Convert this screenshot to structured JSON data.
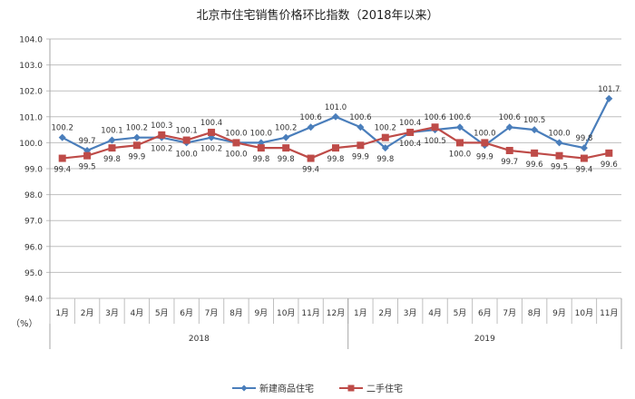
{
  "title": "北京市住宅销售价格环比指数（2018年以来）",
  "unit_label": "（%）",
  "colors": {
    "new_homes": "#4a7ebb",
    "second_hand": "#be4b48",
    "grid": "#bfbfbf",
    "axis": "#a6a6a6",
    "text": "#333333"
  },
  "legend": [
    {
      "name": "新建商品住宅",
      "color": "#4a7ebb",
      "marker": "diamond"
    },
    {
      "name": "二手住宅",
      "color": "#be4b48",
      "marker": "square"
    }
  ],
  "chart_data": {
    "type": "line",
    "title": "北京市住宅销售价格环比指数（2018年以来）",
    "xlabel": "",
    "ylabel": "（%）",
    "ylim": [
      94.0,
      104.0
    ],
    "ytick_step": 1.0,
    "yticks": [
      "94.0",
      "95.0",
      "96.0",
      "97.0",
      "98.0",
      "99.0",
      "100.0",
      "101.0",
      "102.0",
      "103.0",
      "104.0"
    ],
    "grid": true,
    "legend_position": "bottom",
    "groups": [
      {
        "label": "2018",
        "count": 12
      },
      {
        "label": "2019",
        "count": 11
      }
    ],
    "categories": [
      "1月",
      "2月",
      "3月",
      "4月",
      "5月",
      "6月",
      "7月",
      "8月",
      "9月",
      "10月",
      "11月",
      "12月",
      "1月",
      "2月",
      "3月",
      "4月",
      "5月",
      "6月",
      "7月",
      "8月",
      "9月",
      "10月",
      "11月"
    ],
    "series": [
      {
        "name": "新建商品住宅",
        "color": "#4a7ebb",
        "marker": "diamond",
        "values": [
          100.2,
          99.7,
          100.1,
          100.2,
          100.2,
          100.0,
          100.2,
          100.0,
          100.0,
          100.2,
          100.6,
          101.0,
          100.6,
          99.8,
          100.4,
          100.5,
          100.6,
          99.9,
          100.6,
          100.5,
          100.0,
          99.8,
          101.7
        ],
        "label_pos": [
          "above",
          "above",
          "above",
          "above",
          "below",
          "below",
          "below",
          "below",
          "above",
          "above",
          "above",
          "above",
          "above",
          "below",
          "below",
          "below",
          "above",
          "below",
          "above",
          "above",
          "above",
          "above",
          "above"
        ]
      },
      {
        "name": "二手住宅",
        "color": "#be4b48",
        "marker": "square",
        "values": [
          99.4,
          99.5,
          99.8,
          99.9,
          100.3,
          100.1,
          100.4,
          100.0,
          99.8,
          99.8,
          99.4,
          99.8,
          99.9,
          100.2,
          100.4,
          100.6,
          100.0,
          100.0,
          99.7,
          99.6,
          99.5,
          99.4,
          99.6
        ],
        "label_pos": [
          "below",
          "below",
          "below",
          "below",
          "above",
          "above",
          "above",
          "above",
          "below",
          "below",
          "below",
          "below",
          "below",
          "above",
          "above",
          "above",
          "below",
          "above",
          "below",
          "below",
          "below",
          "below",
          "below"
        ]
      }
    ]
  }
}
